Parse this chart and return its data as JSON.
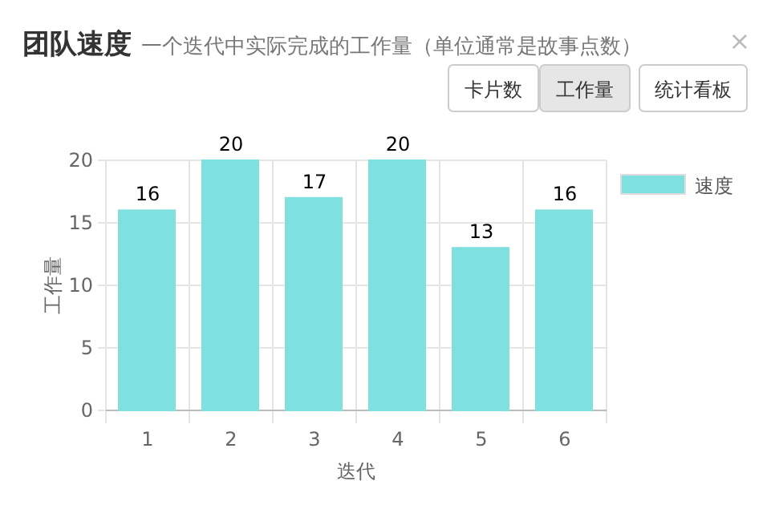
{
  "chart_data": {
    "type": "bar",
    "title": "团队速度",
    "subtitle": "一个迭代中实际完成的工作量（单位通常是故事点数）",
    "xlabel": "迭代",
    "ylabel": "工作量",
    "categories": [
      "1",
      "2",
      "3",
      "4",
      "5",
      "6"
    ],
    "series": [
      {
        "name": "速度",
        "color": "#7fe0e0",
        "values": [
          16,
          20,
          17,
          20,
          13,
          16
        ]
      }
    ],
    "ylim": [
      0,
      20
    ],
    "yticks": [
      0,
      5,
      10,
      15,
      20
    ],
    "grid": true,
    "legend": "top right",
    "data_labels": true,
    "annotations": [
      "卡片数",
      "工作量",
      "统计看板",
      "×"
    ]
  }
}
